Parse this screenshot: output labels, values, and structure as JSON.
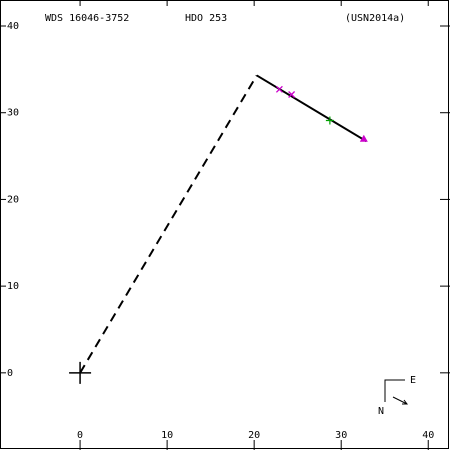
{
  "chart_data": {
    "type": "scatter",
    "title": "WDS 16046-3752",
    "subtitle": "HDO 253",
    "reference": "(USN2014a)",
    "xlim": [
      -9.2,
      42.5
    ],
    "ylim": [
      -8.9,
      43
    ],
    "xticks": [
      0,
      10,
      20,
      30,
      40
    ],
    "yticks": [
      0,
      10,
      20,
      30,
      40
    ],
    "compass": {
      "east": "E",
      "north": "N"
    },
    "series": [
      {
        "color": "#000000",
        "style": "dashed",
        "x": [
          0,
          20.3
        ],
        "values": [
          0,
          34.3
        ]
      },
      {
        "color": "#000000",
        "style": "solid",
        "x": [
          20.3,
          32.9
        ],
        "values": [
          34.3,
          26.7
        ]
      },
      {
        "color": "#cc00cc",
        "marker": "x",
        "x": [
          22.9,
          24.3
        ],
        "values": [
          32.7,
          32.1
        ]
      },
      {
        "color": "#00a000",
        "marker": "plus",
        "x": [
          28.7
        ],
        "values": [
          29.1
        ]
      },
      {
        "color": "#cc00cc",
        "marker": "triangle",
        "x": [
          32.6
        ],
        "values": [
          27.0
        ]
      },
      {
        "color": "#000000",
        "marker": "big-plus",
        "x": [
          0
        ],
        "values": [
          0
        ]
      }
    ]
  }
}
